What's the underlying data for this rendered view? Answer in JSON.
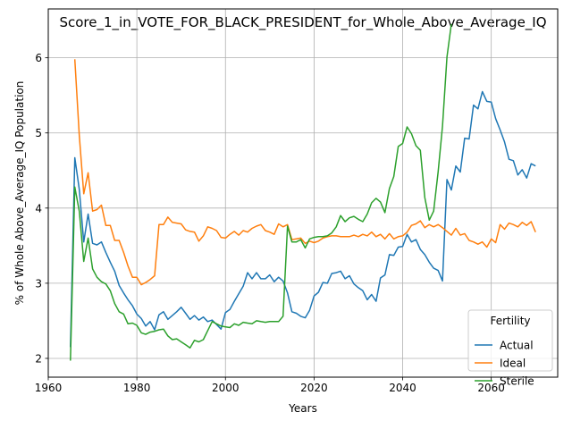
{
  "chart_data": {
    "type": "line",
    "title": "Score_1_in_VOTE_FOR_BLACK_PRESIDENT_for_Whole_Above_Average_IQ",
    "xlabel": "Years",
    "ylabel": "% of Whole Above_Average_IQ Population",
    "xlim": [
      1960,
      2075
    ],
    "ylim": [
      1.75,
      6.65
    ],
    "xticks": [
      1960,
      1980,
      2000,
      2020,
      2040,
      2060
    ],
    "yticks": [
      2,
      3,
      4,
      5,
      6
    ],
    "grid": true,
    "legend": {
      "title": "Fertility",
      "position": "lower right"
    },
    "series": [
      {
        "name": "Actual",
        "color": "#1f77b4",
        "x": [
          1965,
          1966,
          1967,
          1968,
          1969,
          1970,
          1971,
          1972,
          1973,
          1974,
          1975,
          1976,
          1977,
          1978,
          1979,
          1980,
          1981,
          1982,
          1983,
          1984,
          1985,
          1986,
          1987,
          1988,
          1989,
          1990,
          1991,
          1992,
          1993,
          1994,
          1995,
          1996,
          1997,
          1998,
          1999,
          2000,
          2001,
          2002,
          2003,
          2004,
          2005,
          2006,
          2007,
          2008,
          2009,
          2010,
          2011,
          2012,
          2013,
          2014,
          2015,
          2016,
          2017,
          2018,
          2019,
          2020,
          2021,
          2022,
          2023,
          2024,
          2025,
          2026,
          2027,
          2028,
          2029,
          2030,
          2031,
          2032,
          2033,
          2034,
          2035,
          2036,
          2037,
          2038,
          2039,
          2040,
          2041,
          2042,
          2043,
          2044,
          2045,
          2046,
          2047,
          2048,
          2049,
          2050,
          2051,
          2052,
          2053,
          2054,
          2055,
          2056,
          2057,
          2058,
          2059,
          2060,
          2061,
          2062,
          2063,
          2064,
          2065,
          2066,
          2067,
          2068,
          2069,
          2070
        ],
        "y": [
          2.15,
          4.67,
          4.25,
          3.55,
          3.92,
          3.53,
          3.51,
          3.55,
          3.41,
          3.28,
          3.16,
          2.97,
          2.87,
          2.78,
          2.7,
          2.59,
          2.53,
          2.43,
          2.49,
          2.38,
          2.58,
          2.62,
          2.52,
          2.57,
          2.62,
          2.68,
          2.6,
          2.52,
          2.57,
          2.51,
          2.55,
          2.49,
          2.51,
          2.45,
          2.39,
          2.61,
          2.65,
          2.76,
          2.86,
          2.96,
          3.14,
          3.06,
          3.14,
          3.06,
          3.06,
          3.11,
          3.02,
          3.08,
          3.03,
          2.87,
          2.62,
          2.6,
          2.56,
          2.54,
          2.64,
          2.83,
          2.88,
          3.01,
          3.0,
          3.13,
          3.14,
          3.16,
          3.06,
          3.1,
          2.99,
          2.94,
          2.9,
          2.78,
          2.85,
          2.76,
          3.07,
          3.11,
          3.38,
          3.37,
          3.48,
          3.49,
          3.65,
          3.55,
          3.58,
          3.45,
          3.38,
          3.28,
          3.2,
          3.17,
          3.03,
          4.38,
          4.24,
          4.56,
          4.48,
          4.93,
          4.92,
          5.37,
          5.32,
          5.55,
          5.42,
          5.41,
          5.19,
          5.04,
          4.88,
          4.65,
          4.63,
          4.44,
          4.51,
          4.4,
          4.59,
          4.56
        ]
      },
      {
        "name": "Ideal",
        "color": "#ff7f0e",
        "x": [
          1966,
          1967,
          1968,
          1969,
          1970,
          1971,
          1972,
          1973,
          1974,
          1975,
          1976,
          1977,
          1978,
          1979,
          1980,
          1981,
          1982,
          1983,
          1984,
          1985,
          1986,
          1987,
          1988,
          1989,
          1990,
          1991,
          1992,
          1993,
          1994,
          1995,
          1996,
          1997,
          1998,
          1999,
          2000,
          2001,
          2002,
          2003,
          2004,
          2005,
          2006,
          2007,
          2008,
          2009,
          2010,
          2011,
          2012,
          2013,
          2014,
          2015,
          2016,
          2017,
          2018,
          2019,
          2020,
          2021,
          2022,
          2023,
          2024,
          2025,
          2026,
          2027,
          2028,
          2029,
          2030,
          2031,
          2032,
          2033,
          2034,
          2035,
          2036,
          2037,
          2038,
          2039,
          2040,
          2041,
          2042,
          2043,
          2044,
          2045,
          2046,
          2047,
          2048,
          2049,
          2050,
          2051,
          2052,
          2053,
          2054,
          2055,
          2056,
          2057,
          2058,
          2059,
          2060,
          2061,
          2062,
          2063,
          2064,
          2065,
          2066,
          2067,
          2068,
          2069,
          2070
        ],
        "y": [
          5.98,
          4.97,
          4.19,
          4.47,
          3.96,
          3.98,
          4.04,
          3.77,
          3.77,
          3.57,
          3.57,
          3.41,
          3.23,
          3.08,
          3.08,
          2.98,
          3.01,
          3.05,
          3.1,
          3.78,
          3.78,
          3.88,
          3.81,
          3.8,
          3.79,
          3.71,
          3.69,
          3.68,
          3.56,
          3.63,
          3.75,
          3.73,
          3.7,
          3.61,
          3.6,
          3.65,
          3.69,
          3.64,
          3.7,
          3.68,
          3.73,
          3.76,
          3.78,
          3.7,
          3.68,
          3.65,
          3.79,
          3.75,
          3.78,
          3.58,
          3.59,
          3.6,
          3.53,
          3.56,
          3.54,
          3.56,
          3.6,
          3.62,
          3.63,
          3.63,
          3.62,
          3.62,
          3.62,
          3.64,
          3.62,
          3.65,
          3.63,
          3.68,
          3.62,
          3.65,
          3.59,
          3.66,
          3.59,
          3.62,
          3.63,
          3.68,
          3.77,
          3.79,
          3.83,
          3.74,
          3.78,
          3.75,
          3.78,
          3.74,
          3.69,
          3.64,
          3.73,
          3.64,
          3.66,
          3.57,
          3.55,
          3.52,
          3.55,
          3.48,
          3.59,
          3.54,
          3.78,
          3.72,
          3.8,
          3.78,
          3.75,
          3.81,
          3.77,
          3.82,
          3.68
        ]
      },
      {
        "name": "Sterile",
        "color": "#2ca02c",
        "x": [
          1965,
          1966,
          1967,
          1968,
          1969,
          1970,
          1971,
          1972,
          1973,
          1974,
          1975,
          1976,
          1977,
          1978,
          1979,
          1980,
          1981,
          1982,
          1983,
          1984,
          1985,
          1986,
          1987,
          1988,
          1989,
          1990,
          1991,
          1992,
          1993,
          1994,
          1995,
          1996,
          1997,
          1998,
          1999,
          2000,
          2001,
          2002,
          2003,
          2004,
          2005,
          2006,
          2007,
          2008,
          2009,
          2010,
          2011,
          2012,
          2013,
          2014,
          2015,
          2016,
          2017,
          2018,
          2019,
          2020,
          2021,
          2022,
          2023,
          2024,
          2025,
          2026,
          2027,
          2028,
          2029,
          2030,
          2031,
          2032,
          2033,
          2034,
          2035,
          2036,
          2037,
          2038,
          2039,
          2040,
          2041,
          2042,
          2043,
          2044,
          2045,
          2046,
          2047,
          2048,
          2049,
          2050,
          2051
        ],
        "y": [
          1.97,
          4.28,
          3.96,
          3.29,
          3.6,
          3.19,
          3.08,
          3.02,
          2.99,
          2.9,
          2.73,
          2.62,
          2.59,
          2.46,
          2.47,
          2.44,
          2.34,
          2.32,
          2.35,
          2.36,
          2.38,
          2.39,
          2.3,
          2.25,
          2.26,
          2.22,
          2.18,
          2.14,
          2.24,
          2.22,
          2.25,
          2.37,
          2.49,
          2.46,
          2.43,
          2.42,
          2.41,
          2.46,
          2.44,
          2.48,
          2.47,
          2.46,
          2.5,
          2.49,
          2.48,
          2.49,
          2.49,
          2.49,
          2.56,
          3.76,
          3.55,
          3.55,
          3.58,
          3.47,
          3.59,
          3.61,
          3.62,
          3.62,
          3.63,
          3.67,
          3.75,
          3.9,
          3.82,
          3.87,
          3.89,
          3.85,
          3.82,
          3.92,
          4.07,
          4.13,
          4.08,
          3.94,
          4.26,
          4.42,
          4.82,
          4.86,
          5.08,
          4.99,
          4.83,
          4.77,
          4.14,
          3.84,
          3.96,
          4.48,
          5.09,
          6.01,
          6.45
        ]
      }
    ]
  }
}
